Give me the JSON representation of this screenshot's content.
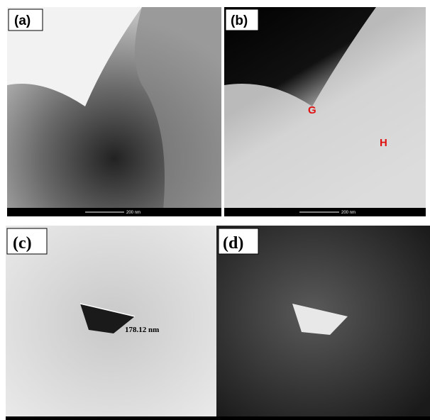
{
  "panels": [
    {
      "label": "(a)",
      "scale_bar": "200 nm"
    },
    {
      "label": "(b)",
      "scale_bar": "200 nm",
      "annotations": [
        "G",
        "H"
      ]
    },
    {
      "label": "(c)",
      "measurement": "178.12 nm"
    },
    {
      "label": "(d)"
    }
  ]
}
